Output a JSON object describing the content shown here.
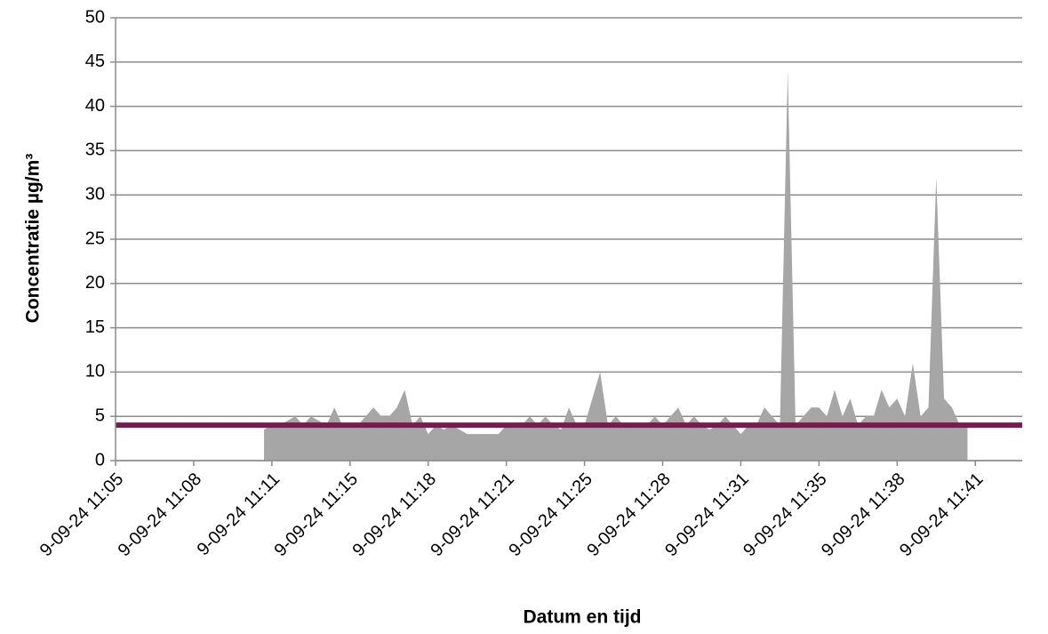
{
  "chart_data": {
    "type": "area",
    "xlabel": "Datum en tijd",
    "ylabel": "Concentratie µg/m³",
    "categories": [
      "9-09-24 11:05",
      null,
      null,
      null,
      null,
      null,
      null,
      null,
      null,
      null,
      "9-09-24 11:08",
      null,
      null,
      null,
      null,
      null,
      null,
      null,
      null,
      null,
      "9-09-24 11:11",
      null,
      null,
      null,
      null,
      null,
      null,
      null,
      null,
      null,
      "9-09-24 11:15",
      null,
      null,
      null,
      null,
      null,
      null,
      null,
      null,
      null,
      "9-09-24 11:18",
      null,
      null,
      null,
      null,
      null,
      null,
      null,
      null,
      null,
      "9-09-24 11:21",
      null,
      null,
      null,
      null,
      null,
      null,
      null,
      null,
      null,
      "9-09-24 11:25",
      null,
      null,
      null,
      null,
      null,
      null,
      null,
      null,
      null,
      "9-09-24 11:28",
      null,
      null,
      null,
      null,
      null,
      null,
      null,
      null,
      null,
      "9-09-24 11:31",
      null,
      null,
      null,
      null,
      null,
      null,
      null,
      null,
      null,
      "9-09-24 11:35",
      null,
      null,
      null,
      null,
      null,
      null,
      null,
      null,
      null,
      "9-09-24 11:38",
      null,
      null,
      null,
      null,
      null,
      null,
      null,
      null,
      null,
      "9-09-24 11:41",
      null,
      null,
      null,
      null,
      null
    ],
    "values": [
      null,
      null,
      null,
      null,
      null,
      null,
      null,
      null,
      null,
      null,
      null,
      null,
      null,
      null,
      null,
      null,
      null,
      null,
      null,
      3.5,
      4,
      4,
      4.5,
      5,
      4,
      5,
      4.5,
      4,
      6,
      4,
      4,
      4,
      5,
      6,
      5,
      5,
      6,
      8,
      4,
      5,
      3,
      4,
      3.5,
      4,
      3.5,
      3,
      3,
      3,
      3,
      3,
      4,
      4,
      4,
      5,
      4,
      5,
      4,
      3.5,
      6,
      4,
      4,
      7,
      10,
      4,
      5,
      4,
      4,
      4,
      4,
      5,
      4,
      5,
      6,
      4,
      5,
      4,
      3.5,
      4,
      5,
      4,
      3,
      4,
      4,
      6,
      5,
      4,
      44,
      4,
      5,
      6,
      6,
      5,
      8,
      5,
      7,
      4,
      5,
      5,
      8,
      6,
      7,
      5,
      11,
      5,
      6,
      32,
      7,
      6,
      4,
      4,
      null,
      null,
      null,
      null,
      null,
      null
    ],
    "color": "#a6a6a6",
    "reference_line": {
      "value": 4,
      "color": "#7b1a4f"
    },
    "ylim": [
      0,
      50
    ],
    "yticks": [
      0,
      5,
      10,
      15,
      20,
      25,
      30,
      35,
      40,
      45,
      50
    ],
    "grid": true
  }
}
